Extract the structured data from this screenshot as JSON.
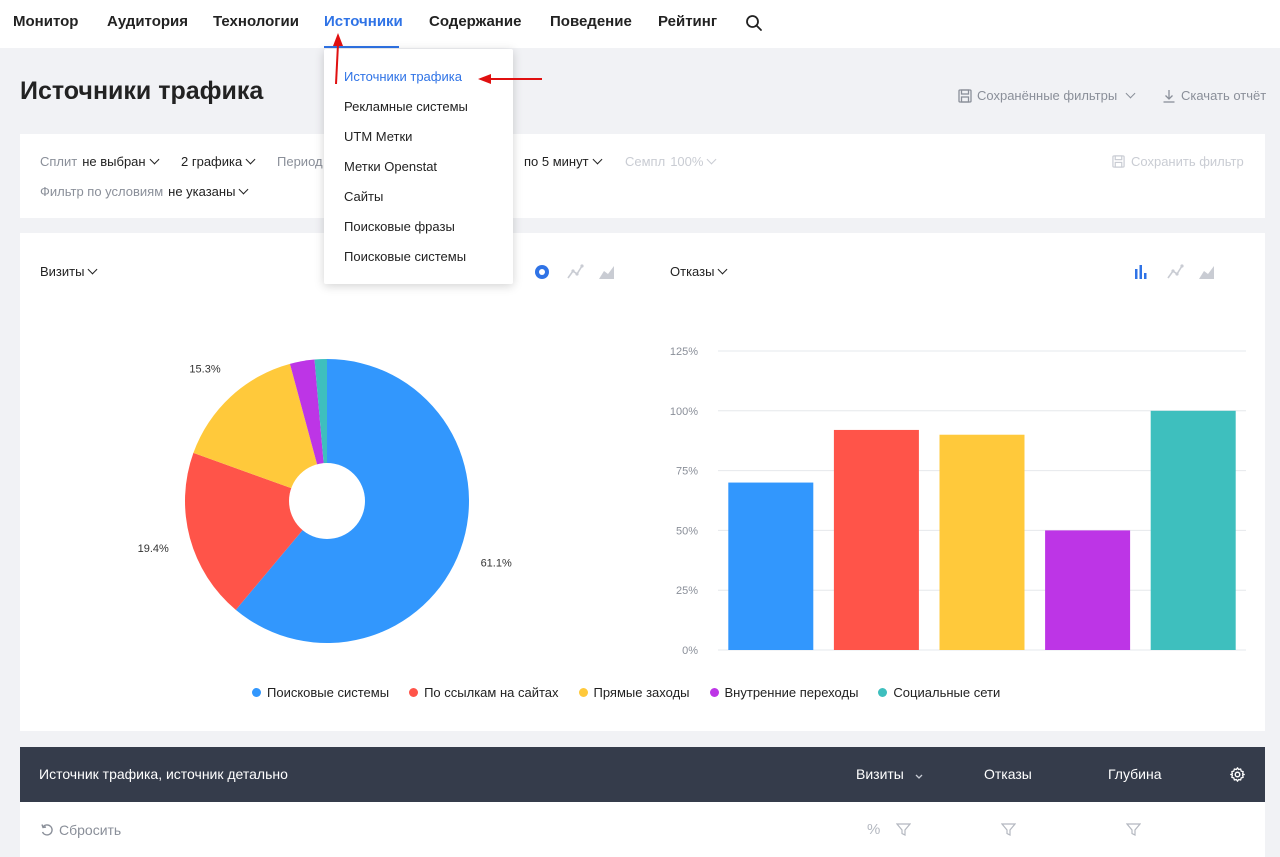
{
  "nav": {
    "items": [
      "Монитор",
      "Аудитория",
      "Технологии",
      "Источники",
      "Содержание",
      "Поведение",
      "Рейтинг"
    ],
    "active_index": 3
  },
  "header": {
    "title": "Источники трафика",
    "saved_filters": "Сохранённые фильтры",
    "download": "Скачать отчёт"
  },
  "filters": {
    "split_label": "Сплит",
    "split_value": "не выбран",
    "charts_value": "2 графика",
    "period_label": "Период",
    "detail_value": "по 5 минут",
    "sample_label": "Семпл",
    "sample_value": "100%",
    "save_filter": "Сохранить фильтр",
    "cond_label": "Фильтр по условиям",
    "cond_value": "не указаны"
  },
  "dropdown": {
    "items": [
      "Источники трафика",
      "Рекламные системы",
      "UTM Метки",
      "Метки Openstat",
      "Сайты",
      "Поисковые фразы",
      "Поисковые системы"
    ],
    "active_index": 0
  },
  "charts": {
    "left_metric": "Визиты",
    "right_metric": "Отказы"
  },
  "colors": {
    "blue": "#3297fd",
    "red": "#ff5449",
    "yellow": "#ffc93b",
    "purple": "#bd35e6",
    "teal": "#3ebfbe",
    "accent": "#2f73e6",
    "annotation": "#e01010"
  },
  "chart_data": [
    {
      "type": "pie",
      "title": "Визиты",
      "categories": [
        "Поисковые системы",
        "По ссылкам на сайтах",
        "Прямые заходы",
        "Внутренние переходы",
        "Социальные сети"
      ],
      "values": [
        61.1,
        19.4,
        15.3,
        2.8,
        1.4
      ],
      "labels": [
        "61.1%",
        "19.4%",
        "15.3%"
      ],
      "colors": [
        "#3297fd",
        "#ff5449",
        "#ffc93b",
        "#bd35e6",
        "#3ebfbe"
      ]
    },
    {
      "type": "bar",
      "title": "Отказы",
      "categories": [
        "Поисковые системы",
        "По ссылкам на сайтах",
        "Прямые заходы",
        "Внутренние переходы",
        "Социальные сети"
      ],
      "values": [
        70,
        92,
        90,
        50,
        100
      ],
      "ylim": [
        0,
        125
      ],
      "yticks": [
        0,
        25,
        50,
        75,
        100,
        125
      ],
      "ytick_labels": [
        "0%",
        "25%",
        "50%",
        "75%",
        "100%",
        "125%"
      ],
      "colors": [
        "#3297fd",
        "#ff5449",
        "#ffc93b",
        "#bd35e6",
        "#3ebfbe"
      ]
    }
  ],
  "legend": [
    "Поисковые системы",
    "По ссылкам на сайтах",
    "Прямые заходы",
    "Внутренние переходы",
    "Социальные сети"
  ],
  "table": {
    "col_source": "Источник трафика, источник детально",
    "col_visits": "Визиты",
    "col_bounce": "Отказы",
    "col_depth": "Глубина",
    "reset": "Сбросить",
    "percent": "%"
  }
}
